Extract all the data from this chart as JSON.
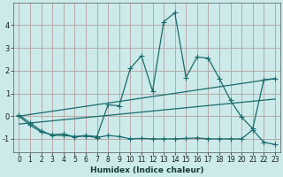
{
  "xlabel": "Humidex (Indice chaleur)",
  "bg_color": "#cceaea",
  "grid_color": "#b8a8a8",
  "line_color": "#1a6b6b",
  "xlim": [
    -0.5,
    23.5
  ],
  "ylim": [
    -1.6,
    5.0
  ],
  "yticks": [
    -1,
    0,
    1,
    2,
    3,
    4
  ],
  "xticks": [
    0,
    1,
    2,
    3,
    4,
    5,
    6,
    7,
    8,
    9,
    10,
    11,
    12,
    13,
    14,
    15,
    16,
    17,
    18,
    19,
    20,
    21,
    22,
    23
  ],
  "line1_x": [
    0,
    1,
    2,
    3,
    4,
    5,
    6,
    7,
    8,
    9,
    10,
    11,
    12,
    13,
    14,
    15,
    16,
    17,
    18,
    19,
    20,
    21,
    22,
    23
  ],
  "line1_y": [
    0.05,
    -0.3,
    -0.65,
    -0.85,
    -0.85,
    -0.9,
    -0.85,
    -0.9,
    0.5,
    0.45,
    2.1,
    2.65,
    1.1,
    4.15,
    4.55,
    1.7,
    2.6,
    2.55,
    1.65,
    0.7,
    -0.05,
    -0.55,
    1.6,
    1.65
  ],
  "line2_x": [
    0,
    1,
    2,
    3,
    4,
    5,
    6,
    7,
    8,
    9,
    10,
    11,
    12,
    13,
    14,
    15,
    16,
    17,
    18,
    19,
    20,
    21,
    22,
    23
  ],
  "line2_y": [
    0.0,
    -0.4,
    -0.7,
    -0.82,
    -0.78,
    -0.92,
    -0.87,
    -0.95,
    -0.85,
    -0.9,
    -1.0,
    -0.98,
    -1.0,
    -1.0,
    -1.0,
    -0.98,
    -0.96,
    -1.0,
    -1.0,
    -1.0,
    -1.0,
    -0.6,
    -1.15,
    -1.25
  ],
  "line3_x": [
    0,
    23
  ],
  "line3_y": [
    0.0,
    1.65
  ],
  "line4_x": [
    0,
    23
  ],
  "line4_y": [
    -0.35,
    0.75
  ]
}
